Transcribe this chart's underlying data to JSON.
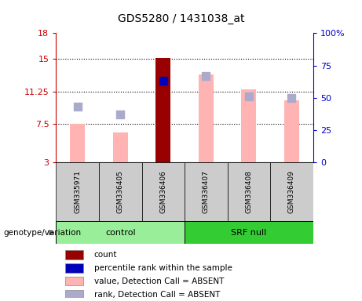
{
  "title": "GDS5280 / 1431038_at",
  "samples": [
    "GSM335971",
    "GSM336405",
    "GSM336406",
    "GSM336407",
    "GSM336408",
    "GSM336409"
  ],
  "ylim_left": [
    3,
    18
  ],
  "ylim_right": [
    0,
    100
  ],
  "yticks_left": [
    3,
    7.5,
    11.25,
    15,
    18
  ],
  "yticks_right": [
    0,
    25,
    50,
    75,
    100
  ],
  "ytick_labels_left": [
    "3",
    "7.5",
    "11.25",
    "15",
    "18"
  ],
  "ytick_labels_right": [
    "0",
    "25",
    "50",
    "75",
    "100%"
  ],
  "value_bars": [
    7.5,
    6.5,
    15.1,
    13.2,
    11.5,
    10.2
  ],
  "rank_dots_pct": [
    43,
    37,
    63,
    67,
    51,
    50
  ],
  "count_bar_index": 2,
  "percentile_rank_dot_index": 2,
  "bar_bottom": 3,
  "value_bar_color": "#FFB3B3",
  "count_bar_color": "#990000",
  "rank_dot_color": "#AAAACC",
  "percentile_dot_color": "#0000BB",
  "axis_color_left": "#CC0000",
  "axis_color_right": "#0000CC",
  "plot_bg": "white",
  "sample_area_color": "#CCCCCC",
  "group_colors": {
    "control": "#99EE99",
    "SRF null": "#33CC33"
  },
  "legend_items": [
    {
      "label": "count",
      "color": "#990000"
    },
    {
      "label": "percentile rank within the sample",
      "color": "#0000BB"
    },
    {
      "label": "value, Detection Call = ABSENT",
      "color": "#FFB3B3"
    },
    {
      "label": "rank, Detection Call = ABSENT",
      "color": "#AAAACC"
    }
  ],
  "bar_width": 0.35,
  "dot_size": 55
}
